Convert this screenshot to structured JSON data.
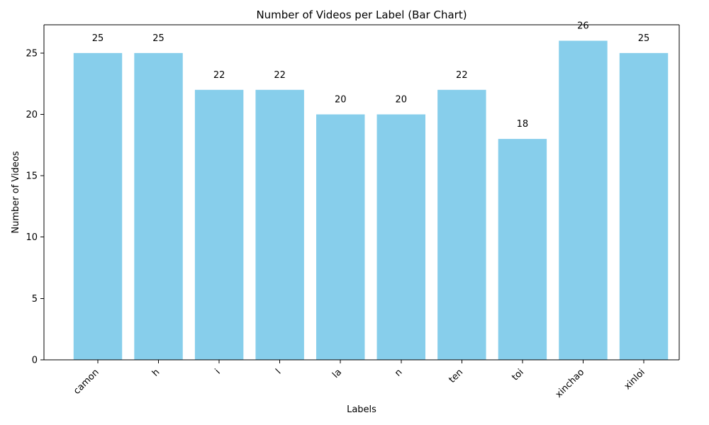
{
  "chart_data": {
    "type": "bar",
    "title": "Number of Videos per Label (Bar Chart)",
    "xlabel": "Labels",
    "ylabel": "Number of Videos",
    "categories": [
      "camon",
      "h",
      "i",
      "l",
      "la",
      "n",
      "ten",
      "toi",
      "xinchao",
      "xinloi"
    ],
    "values": [
      25,
      25,
      22,
      22,
      20,
      20,
      22,
      18,
      26,
      25
    ],
    "data_labels": [
      "25",
      "25",
      "22",
      "22",
      "20",
      "20",
      "22",
      "18",
      "26",
      "25"
    ],
    "y_ticks": [
      0,
      5,
      10,
      15,
      20,
      25
    ],
    "y_tick_labels": [
      "0",
      "5",
      "10",
      "15",
      "20",
      "25"
    ],
    "ylim": [
      0,
      27.3
    ],
    "grid": false,
    "bar_color": "#87CEEB",
    "x_tick_rotation": "45 degrees"
  }
}
